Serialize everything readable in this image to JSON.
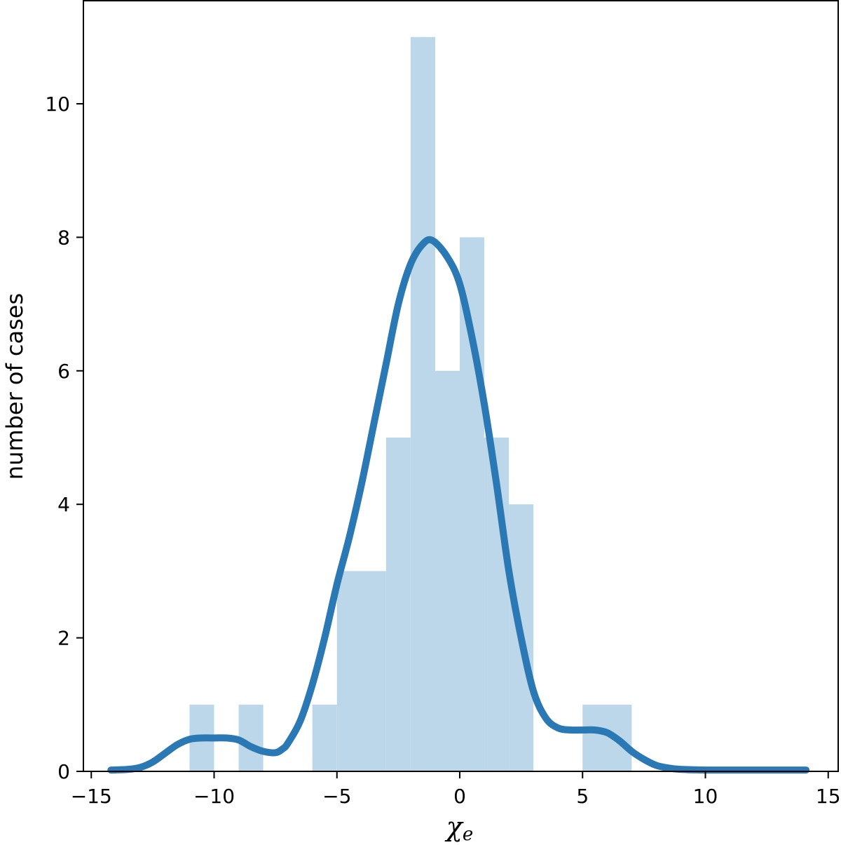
{
  "chart_data": {
    "type": "bar",
    "subtype": "histogram-with-density",
    "title": "",
    "xlabel": "χe",
    "xlabel_symbol": "χ",
    "xlabel_subscript": "e",
    "ylabel": "number of cases",
    "xlim": [
      -15,
      15
    ],
    "ylim": [
      0,
      11.5
    ],
    "x_ticks": [
      -15,
      -10,
      -5,
      0,
      5,
      10,
      15
    ],
    "x_tick_labels": [
      "−15",
      "−10",
      "−5",
      "0",
      "5",
      "10",
      "15"
    ],
    "y_ticks": [
      0,
      2,
      4,
      6,
      8,
      10
    ],
    "y_tick_labels": [
      "0",
      "2",
      "4",
      "6",
      "8",
      "10"
    ],
    "grid": false,
    "bins": [
      {
        "x0": -11,
        "x1": -10,
        "count": 1
      },
      {
        "x0": -9,
        "x1": -8,
        "count": 1
      },
      {
        "x0": -6,
        "x1": -5,
        "count": 1
      },
      {
        "x0": -5,
        "x1": -3,
        "count": 3
      },
      {
        "x0": -3,
        "x1": -2,
        "count": 5
      },
      {
        "x0": -2,
        "x1": -1,
        "count": 11
      },
      {
        "x0": -1,
        "x1": 0,
        "count": 6
      },
      {
        "x0": 0,
        "x1": 1,
        "count": 8
      },
      {
        "x0": 1,
        "x1": 2,
        "count": 5
      },
      {
        "x0": 2,
        "x1": 3,
        "count": 4
      },
      {
        "x0": 5,
        "x1": 7,
        "count": 1
      }
    ],
    "density_curve": {
      "x": [
        -14.2,
        -13.5,
        -13,
        -12.5,
        -12,
        -11.5,
        -11,
        -10.5,
        -10,
        -9.5,
        -9,
        -8.5,
        -8,
        -7.5,
        -7.2,
        -7,
        -6.5,
        -6,
        -5.5,
        -5,
        -4.5,
        -4,
        -3.5,
        -3,
        -2.5,
        -2,
        -1.5,
        -1.1,
        -0.5,
        0,
        0.5,
        1,
        1.5,
        2,
        2.5,
        3,
        3.5,
        4,
        4.5,
        5,
        5.5,
        6,
        6.5,
        7,
        7.5,
        8,
        8.5,
        9,
        10,
        11,
        12,
        13,
        14.1
      ],
      "y": [
        0.02,
        0.03,
        0.06,
        0.14,
        0.27,
        0.4,
        0.48,
        0.5,
        0.5,
        0.5,
        0.47,
        0.37,
        0.3,
        0.28,
        0.34,
        0.42,
        0.75,
        1.3,
        2.0,
        2.8,
        3.5,
        4.3,
        5.2,
        6.1,
        7.0,
        7.6,
        7.9,
        7.95,
        7.7,
        7.3,
        6.5,
        5.5,
        4.3,
        3.0,
        2.0,
        1.2,
        0.8,
        0.65,
        0.62,
        0.62,
        0.62,
        0.58,
        0.46,
        0.3,
        0.18,
        0.09,
        0.05,
        0.03,
        0.02,
        0.02,
        0.02,
        0.02,
        0.02
      ]
    },
    "colors": {
      "bar_fill": "#bcd6ea",
      "curve": "#2a78b4",
      "axis": "#000000"
    }
  }
}
